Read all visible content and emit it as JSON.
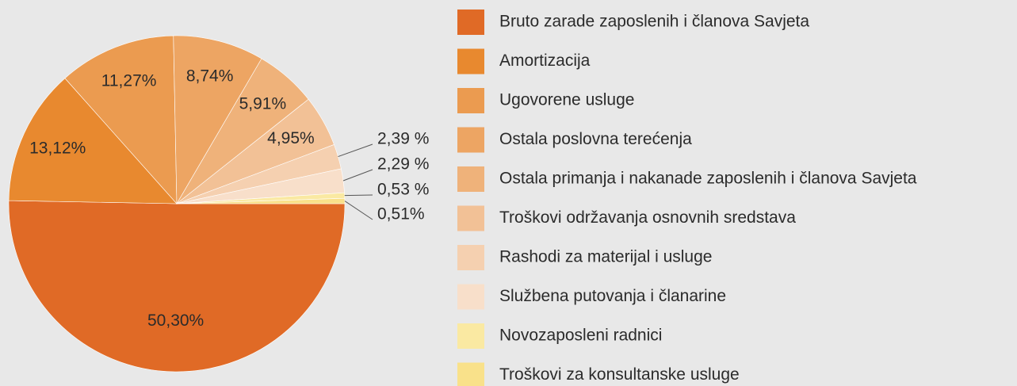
{
  "chart_data": {
    "type": "pie",
    "categories": [
      "Bruto zarade zaposlenih i članova Savjeta",
      "Amortizacija",
      "Ugovorene usluge",
      "Ostala poslovna terećenja",
      "Ostala primanja i nakanade zaposlenih i članova Savjeta",
      "Troškovi održavanja osnovnih sredstava",
      "Rashodi za materijal i usluge",
      "Službena putovanja i članarine",
      "Novozaposleni radnici",
      "Troškovi za konsultanske usluge"
    ],
    "values": [
      50.3,
      13.12,
      11.27,
      8.74,
      5.91,
      4.95,
      2.39,
      2.29,
      0.53,
      0.51
    ],
    "value_labels": [
      "50,30%",
      "13,12%",
      "11,27%",
      "8,74%",
      "5,91%",
      "4,95%",
      "2,39 %",
      "2,29 %",
      "0,53 %",
      "0,51%"
    ],
    "colors": [
      "#e06a26",
      "#e8892f",
      "#eb9b50",
      "#eda563",
      "#efb27a",
      "#f2c196",
      "#f5d0b0",
      "#f8dfca",
      "#fae9a2",
      "#f9e18a"
    ]
  }
}
